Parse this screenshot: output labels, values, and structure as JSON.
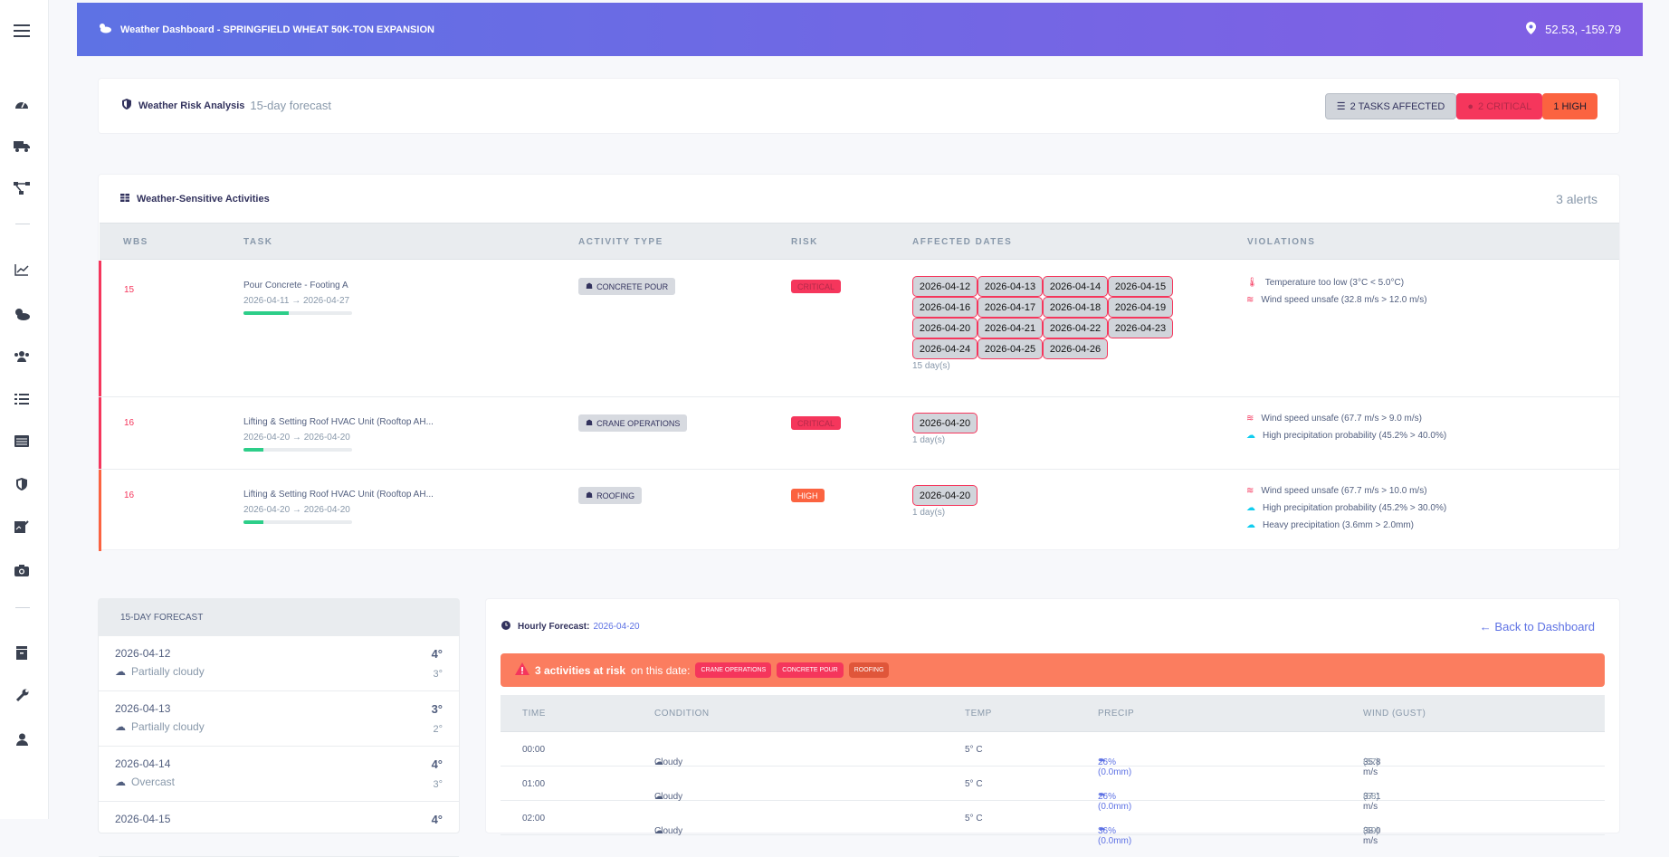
{
  "topbar": {
    "title": "Weather Dashboard - SPRINGFIELD WHEAT 50K-TON EXPANSION",
    "coords": "52.53, -159.79"
  },
  "risk_analysis": {
    "title": "Weather Risk Analysis",
    "subtitle": "15-day forecast",
    "tasks_affected": "2 TASKS AFFECTED",
    "critical": "2 CRITICAL",
    "high": "1 HIGH"
  },
  "activities": {
    "title": "Weather-Sensitive Activities",
    "alerts": "3 alerts",
    "headers": [
      "WBS",
      "TASK",
      "ACTIVITY TYPE",
      "RISK",
      "AFFECTED DATES",
      "VIOLATIONS"
    ],
    "rows": [
      {
        "wbs": "15",
        "task": "Pour Concrete - Footing A",
        "dates": "2026-04-11 → 2026-04-27",
        "progress": 0.42,
        "type": "CONCRETE POUR",
        "risk": "CRITICAL",
        "affected": [
          "2026-04-12",
          "2026-04-13",
          "2026-04-14",
          "2026-04-15",
          "2026-04-16",
          "2026-04-17",
          "2026-04-18",
          "2026-04-19",
          "2026-04-20",
          "2026-04-21",
          "2026-04-22",
          "2026-04-23",
          "2026-04-24",
          "2026-04-25",
          "2026-04-26"
        ],
        "days": "15 day(s)",
        "violations": [
          "Temperature too low (3°C < 5.0°C)",
          "Wind speed unsafe (32.8 m/s > 12.0 m/s)"
        ]
      },
      {
        "wbs": "16",
        "task": "Lifting & Setting Roof HVAC Unit (Rooftop AH...",
        "dates": "2026-04-20 → 2026-04-20",
        "progress": 0.18,
        "type": "CRANE OPERATIONS",
        "risk": "CRITICAL",
        "affected": [
          "2026-04-20"
        ],
        "days": "1 day(s)",
        "violations": [
          "Wind speed unsafe (67.7 m/s > 9.0 m/s)",
          "High precipitation probability (45.2% > 40.0%)"
        ]
      },
      {
        "wbs": "16",
        "task": "Lifting & Setting Roof HVAC Unit (Rooftop AH...",
        "dates": "2026-04-20 → 2026-04-20",
        "progress": 0.18,
        "type": "ROOFING",
        "risk": "HIGH",
        "affected": [
          "2026-04-20"
        ],
        "days": "1 day(s)",
        "violations": [
          "Wind speed unsafe (67.7 m/s > 10.0 m/s)",
          "High precipitation probability (45.2% > 30.0%)",
          "Heavy precipitation (3.6mm > 2.0mm)"
        ]
      }
    ]
  },
  "forecast": {
    "title": "15-DAY FORECAST",
    "items": [
      {
        "date": "2026-04-12",
        "cond": "Partially cloudy",
        "hi": "4°",
        "lo": "3°"
      },
      {
        "date": "2026-04-13",
        "cond": "Partially cloudy",
        "hi": "3°",
        "lo": "2°"
      },
      {
        "date": "2026-04-14",
        "cond": "Overcast",
        "hi": "4°",
        "lo": "3°"
      },
      {
        "date": "2026-04-15",
        "cond": "",
        "hi": "4°",
        "lo": ""
      }
    ]
  },
  "hourly": {
    "title": "Hourly Forecast:",
    "date": "2026-04-20",
    "back": "Back to Dashboard",
    "alert_strong": "3 activities at risk",
    "alert_rest": "on this date:",
    "tags": [
      "CRANE OPERATIONS",
      "CONCRETE POUR",
      "ROOFING"
    ],
    "headers": [
      "TIME",
      "CONDITION",
      "TEMP",
      "PRECIP",
      "WIND (GUST)"
    ],
    "rows": [
      {
        "time": "00:00",
        "cond": "Cloudy",
        "temp": "5° C",
        "precip": "26% (0.0mm)",
        "wind": "35.8 m/s",
        "gust": "(57)"
      },
      {
        "time": "01:00",
        "cond": "Cloudy",
        "temp": "5° C",
        "precip": "26% (0.0mm)",
        "wind": "37.1 m/s",
        "gust": "(58)"
      },
      {
        "time": "02:00",
        "cond": "Cloudy",
        "temp": "5° C",
        "precip": "36% (0.0mm)",
        "wind": "38.0 m/s",
        "gust": "(59)"
      }
    ]
  },
  "colors": {
    "critical": "#f5365c",
    "high": "#fb6340",
    "accent": "#5e72e4",
    "progress": "#2dce89"
  }
}
